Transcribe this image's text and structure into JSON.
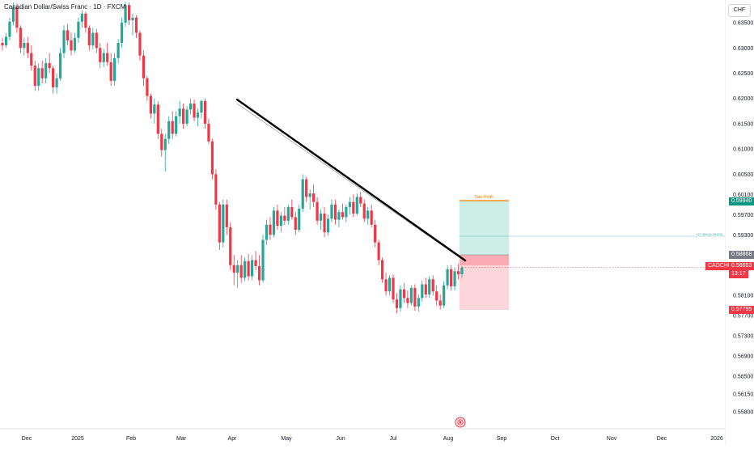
{
  "header": {
    "title": "Canadian Dollar/Swiss Franc · 1D · FXCM",
    "currency": "CHF"
  },
  "price_tags": {
    "take_profit": "0.59940",
    "entry": "0.58868",
    "symbol": "CADCHF",
    "current": "0.58653",
    "countdown": "13:17",
    "stop": "0.57795"
  },
  "position": {
    "take_profit_text": "Take Profit",
    "stats_text": "+27.309 (0.29123)"
  },
  "colors": {
    "up": "#26a69a",
    "down": "#f23645",
    "trendline": "#000000",
    "profit_zone": "#cdeee6",
    "loss_zone": "#fcd6da",
    "tp_line": "#f57c00"
  },
  "chart_data": {
    "type": "candlestick",
    "title": "Canadian Dollar/Swiss Franc · 1D · FXCM",
    "xlabel": "",
    "ylabel": "CHF",
    "ylim": [
      0.5546,
      0.6395
    ],
    "x_ticks": [
      "Dec",
      "2025",
      "Feb",
      "Mar",
      "Apr",
      "May",
      "Jun",
      "Jul",
      "Aug",
      "Sep",
      "Oct",
      "Nov",
      "Dec",
      "2026"
    ],
    "y_ticks": [
      "0.63500",
      "0.63000",
      "0.62500",
      "0.62000",
      "0.61500",
      "0.61000",
      "0.60500",
      "0.60100",
      "0.59700",
      "0.59300",
      "0.58100",
      "0.57700",
      "0.57300",
      "0.56900",
      "0.56500",
      "0.56150",
      "0.55800"
    ],
    "series": [
      {
        "values": [
          [
            0.631,
            0.632,
            0.6295,
            0.6305
          ],
          [
            0.6305,
            0.633,
            0.63,
            0.6322
          ],
          [
            0.6322,
            0.636,
            0.6315,
            0.6352
          ],
          [
            0.6352,
            0.639,
            0.6345,
            0.638
          ],
          [
            0.638,
            0.6388,
            0.633,
            0.634
          ],
          [
            0.634,
            0.6345,
            0.629,
            0.63
          ],
          [
            0.63,
            0.632,
            0.6285,
            0.631
          ],
          [
            0.631,
            0.6322,
            0.628,
            0.629
          ],
          [
            0.629,
            0.6305,
            0.6255,
            0.6265
          ],
          [
            0.6265,
            0.6275,
            0.6215,
            0.6225
          ],
          [
            0.6225,
            0.627,
            0.6215,
            0.626
          ],
          [
            0.626,
            0.6275,
            0.623,
            0.624
          ],
          [
            0.624,
            0.628,
            0.623,
            0.627
          ],
          [
            0.627,
            0.629,
            0.625,
            0.626
          ],
          [
            0.626,
            0.6265,
            0.621,
            0.6222
          ],
          [
            0.6222,
            0.625,
            0.621,
            0.624
          ],
          [
            0.624,
            0.63,
            0.6235,
            0.629
          ],
          [
            0.629,
            0.6345,
            0.628,
            0.6335
          ],
          [
            0.6335,
            0.6348,
            0.6305,
            0.6315
          ],
          [
            0.6315,
            0.633,
            0.6285,
            0.6295
          ],
          [
            0.6295,
            0.633,
            0.629,
            0.632
          ],
          [
            0.632,
            0.636,
            0.631,
            0.6352
          ],
          [
            0.6352,
            0.6375,
            0.634,
            0.6368
          ],
          [
            0.6368,
            0.6372,
            0.633,
            0.634
          ],
          [
            0.634,
            0.6345,
            0.6295,
            0.6305
          ],
          [
            0.6305,
            0.634,
            0.6298,
            0.633
          ],
          [
            0.633,
            0.6338,
            0.629,
            0.63
          ],
          [
            0.63,
            0.631,
            0.626,
            0.6272
          ],
          [
            0.6272,
            0.6298,
            0.6262,
            0.629
          ],
          [
            0.629,
            0.631,
            0.6265,
            0.6272
          ],
          [
            0.6272,
            0.629,
            0.6225,
            0.6235
          ],
          [
            0.6235,
            0.629,
            0.6225,
            0.628
          ],
          [
            0.628,
            0.6318,
            0.627,
            0.631
          ],
          [
            0.631,
            0.636,
            0.63,
            0.635
          ],
          [
            0.635,
            0.6392,
            0.6342,
            0.6385
          ],
          [
            0.6385,
            0.639,
            0.6345,
            0.6355
          ],
          [
            0.6355,
            0.6368,
            0.6325,
            0.636
          ],
          [
            0.636,
            0.6365,
            0.632,
            0.633
          ],
          [
            0.633,
            0.6335,
            0.6275,
            0.6285
          ],
          [
            0.6285,
            0.6295,
            0.6225,
            0.624
          ],
          [
            0.624,
            0.6245,
            0.6195,
            0.6205
          ],
          [
            0.6205,
            0.621,
            0.616,
            0.617
          ],
          [
            0.617,
            0.62,
            0.615,
            0.6188
          ],
          [
            0.6188,
            0.6195,
            0.612,
            0.613
          ],
          [
            0.613,
            0.614,
            0.6085,
            0.6098
          ],
          [
            0.6098,
            0.613,
            0.6055,
            0.612
          ],
          [
            0.612,
            0.6165,
            0.611,
            0.6155
          ],
          [
            0.6155,
            0.6175,
            0.612,
            0.613
          ],
          [
            0.613,
            0.6175,
            0.6125,
            0.6165
          ],
          [
            0.6165,
            0.6195,
            0.615,
            0.618
          ],
          [
            0.618,
            0.619,
            0.614,
            0.615
          ],
          [
            0.615,
            0.6185,
            0.6145,
            0.6178
          ],
          [
            0.6178,
            0.62,
            0.6168,
            0.619
          ],
          [
            0.619,
            0.6198,
            0.6155,
            0.6162
          ],
          [
            0.6162,
            0.618,
            0.6145,
            0.6172
          ],
          [
            0.6172,
            0.6198,
            0.616,
            0.6195
          ],
          [
            0.6195,
            0.62,
            0.614,
            0.615
          ],
          [
            0.615,
            0.616,
            0.611,
            0.6115
          ],
          [
            0.6115,
            0.612,
            0.604,
            0.605
          ],
          [
            0.605,
            0.606,
            0.598,
            0.599
          ],
          [
            0.599,
            0.5995,
            0.59,
            0.5915
          ],
          [
            0.5915,
            0.6,
            0.5905,
            0.599
          ],
          [
            0.599,
            0.6,
            0.593,
            0.5945
          ],
          [
            0.5945,
            0.5955,
            0.586,
            0.587
          ],
          [
            0.587,
            0.589,
            0.583,
            0.5855
          ],
          [
            0.5855,
            0.588,
            0.5825,
            0.587
          ],
          [
            0.587,
            0.589,
            0.5835,
            0.5845
          ],
          [
            0.5845,
            0.5885,
            0.5838,
            0.5878
          ],
          [
            0.5878,
            0.5892,
            0.584,
            0.5848
          ],
          [
            0.5848,
            0.589,
            0.584,
            0.588
          ],
          [
            0.588,
            0.5898,
            0.586,
            0.5868
          ],
          [
            0.5868,
            0.589,
            0.583,
            0.584
          ],
          [
            0.584,
            0.593,
            0.5835,
            0.592
          ],
          [
            0.592,
            0.596,
            0.591,
            0.595
          ],
          [
            0.595,
            0.5965,
            0.592,
            0.593
          ],
          [
            0.593,
            0.5985,
            0.5925,
            0.5978
          ],
          [
            0.5978,
            0.599,
            0.594,
            0.5948
          ],
          [
            0.5948,
            0.5975,
            0.5935,
            0.5968
          ],
          [
            0.5968,
            0.5985,
            0.595,
            0.5958
          ],
          [
            0.5958,
            0.599,
            0.595,
            0.5985
          ],
          [
            0.5985,
            0.6,
            0.596,
            0.5965
          ],
          [
            0.5965,
            0.5975,
            0.593,
            0.594
          ],
          [
            0.594,
            0.599,
            0.5935,
            0.5982
          ],
          [
            0.5982,
            0.605,
            0.5975,
            0.604
          ],
          [
            0.604,
            0.6045,
            0.5995,
            0.6005
          ],
          [
            0.6005,
            0.602,
            0.598,
            0.6012
          ],
          [
            0.6012,
            0.603,
            0.5985,
            0.5995
          ],
          [
            0.5995,
            0.6005,
            0.595,
            0.5958
          ],
          [
            0.5958,
            0.598,
            0.594,
            0.5972
          ],
          [
            0.5972,
            0.5985,
            0.5925,
            0.5935
          ],
          [
            0.5935,
            0.597,
            0.5928,
            0.5962
          ],
          [
            0.5962,
            0.6,
            0.5955,
            0.599
          ],
          [
            0.599,
            0.6,
            0.595,
            0.596
          ],
          [
            0.596,
            0.598,
            0.5945,
            0.5975
          ],
          [
            0.5975,
            0.5992,
            0.596,
            0.5965
          ],
          [
            0.5965,
            0.599,
            0.5955,
            0.5985
          ],
          [
            0.5985,
            0.6005,
            0.597,
            0.5995
          ],
          [
            0.5995,
            0.601,
            0.5965,
            0.5972
          ],
          [
            0.5972,
            0.6012,
            0.5968,
            0.6005
          ],
          [
            0.6005,
            0.6015,
            0.5985,
            0.5992
          ],
          [
            0.5992,
            0.6,
            0.5955,
            0.5962
          ],
          [
            0.5962,
            0.5985,
            0.595,
            0.5978
          ],
          [
            0.5978,
            0.599,
            0.5945,
            0.595
          ],
          [
            0.595,
            0.596,
            0.5905,
            0.5915
          ],
          [
            0.5915,
            0.592,
            0.587,
            0.588
          ],
          [
            0.588,
            0.5885,
            0.5835,
            0.5842
          ],
          [
            0.5842,
            0.5855,
            0.581,
            0.5818
          ],
          [
            0.5818,
            0.585,
            0.581,
            0.5845
          ],
          [
            0.5845,
            0.5852,
            0.5795,
            0.5802
          ],
          [
            0.5802,
            0.5815,
            0.5775,
            0.5785
          ],
          [
            0.5785,
            0.583,
            0.5778,
            0.5822
          ],
          [
            0.5822,
            0.5835,
            0.5795,
            0.5805
          ],
          [
            0.5805,
            0.582,
            0.5785,
            0.5795
          ],
          [
            0.5795,
            0.583,
            0.579,
            0.5825
          ],
          [
            0.5825,
            0.5832,
            0.578,
            0.5788
          ],
          [
            0.5788,
            0.5812,
            0.5778,
            0.5805
          ],
          [
            0.5805,
            0.584,
            0.5798,
            0.5832
          ],
          [
            0.5832,
            0.5845,
            0.5805,
            0.5812
          ],
          [
            0.5812,
            0.5848,
            0.5805,
            0.5842
          ],
          [
            0.5842,
            0.585,
            0.581,
            0.5818
          ],
          [
            0.5818,
            0.583,
            0.579,
            0.58
          ],
          [
            0.58,
            0.5812,
            0.5782,
            0.579
          ],
          [
            0.579,
            0.5838,
            0.5785,
            0.583
          ],
          [
            0.583,
            0.587,
            0.5822,
            0.5862
          ],
          [
            0.5862,
            0.587,
            0.582,
            0.5828
          ],
          [
            0.5828,
            0.5865,
            0.582,
            0.5858
          ],
          [
            0.5858,
            0.5872,
            0.5842,
            0.5852
          ],
          [
            0.5852,
            0.5868,
            0.5845,
            0.5865
          ]
        ]
      }
    ],
    "trendline": {
      "from": [
        "Apr",
        0.62
      ],
      "to": [
        "Aug",
        0.586
      ]
    },
    "position": {
      "take_profit": 0.5994,
      "entry": 0.58868,
      "stop": 0.57795
    },
    "current_price": 0.58653,
    "grid": false
  }
}
